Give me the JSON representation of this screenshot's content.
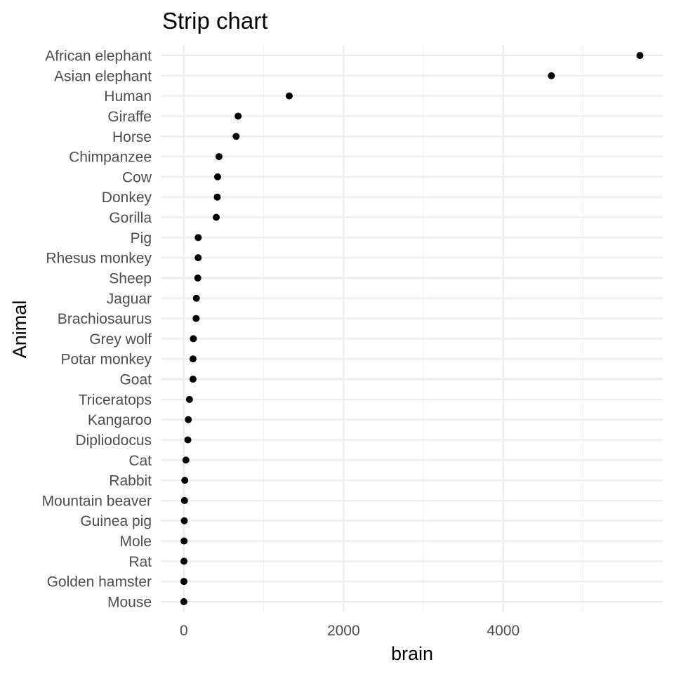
{
  "chart_data": {
    "type": "scatter",
    "title": "Strip chart",
    "xlabel": "brain",
    "ylabel": "Animal",
    "xlim": [
      -280,
      5998
    ],
    "xticks": [
      0,
      2000,
      4000
    ],
    "xtick_labels": [
      "0",
      "2000",
      "4000"
    ],
    "grid": true,
    "legend": "none",
    "point_color": "#000000",
    "categories": [
      "African elephant",
      "Asian elephant",
      "Human",
      "Giraffe",
      "Horse",
      "Chimpanzee",
      "Cow",
      "Donkey",
      "Gorilla",
      "Pig",
      "Rhesus monkey",
      "Sheep",
      "Jaguar",
      "Brachiosaurus",
      "Grey wolf",
      "Potar monkey",
      "Goat",
      "Triceratops",
      "Kangaroo",
      "Dipliodocus",
      "Cat",
      "Rabbit",
      "Mountain beaver",
      "Guinea pig",
      "Mole",
      "Rat",
      "Golden hamster",
      "Mouse"
    ],
    "values": [
      5712,
      4603,
      1320,
      680,
      655,
      440,
      423,
      419,
      406,
      180,
      179,
      175,
      157,
      154,
      119.5,
      115,
      115,
      70,
      56,
      50,
      25.6,
      12.1,
      8.1,
      5.5,
      3,
      1.9,
      1,
      0.4
    ]
  }
}
